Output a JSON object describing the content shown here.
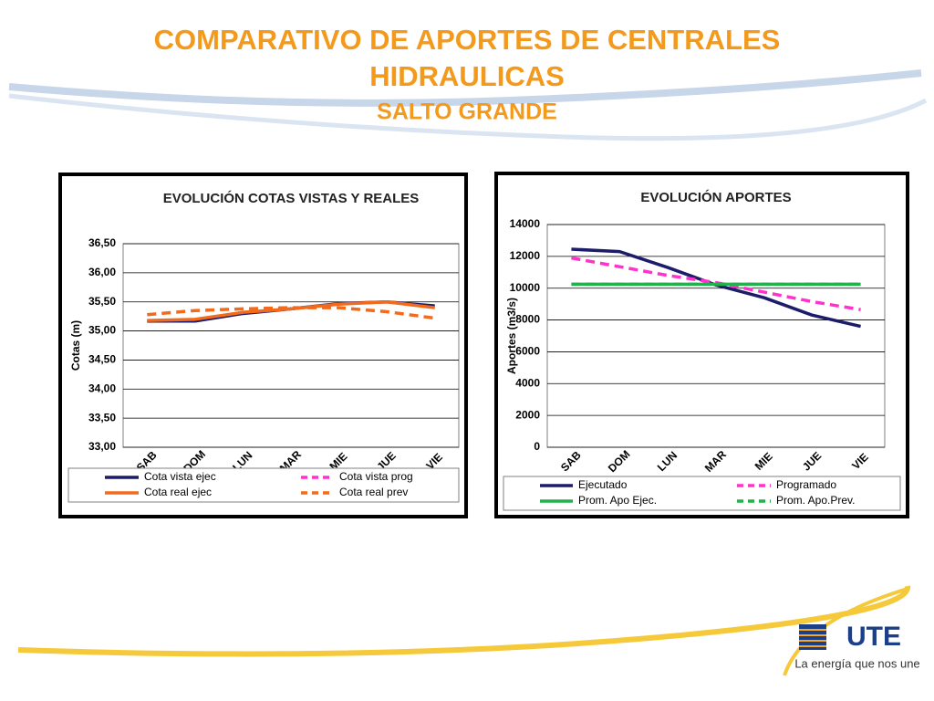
{
  "header": {
    "title_line1": "COMPARATIVO DE APORTES DE CENTRALES",
    "title_line2": "HIDRAULICAS",
    "subtitle": "SALTO GRANDE"
  },
  "logo": {
    "name": "UTE",
    "tagline": "La energía que nos une"
  },
  "chart_data": [
    {
      "type": "line",
      "title": "EVOLUCIÓN  COTAS VISTAS Y REALES",
      "y_label": "Cotas (m)",
      "categories": [
        "SAB",
        "DOM",
        "LUN",
        "MAR",
        "MIE",
        "JUE",
        "VIE"
      ],
      "ylim": [
        33,
        36.5
      ],
      "yticks": [
        {
          "value": 33,
          "label": "33,00"
        },
        {
          "value": 33.5,
          "label": "33,50"
        },
        {
          "value": 34,
          "label": "34,00"
        },
        {
          "value": 34.5,
          "label": "34,50"
        },
        {
          "value": 35,
          "label": "35,00"
        },
        {
          "value": 35.5,
          "label": "35,50"
        },
        {
          "value": 36,
          "label": "36,00"
        },
        {
          "value": 36.5,
          "label": "36,50"
        }
      ],
      "grid": true,
      "series": [
        {
          "name": "Cota vista ejec",
          "color": "#1c1c6b",
          "dashed": false,
          "values": [
            35.17,
            35.17,
            35.3,
            35.38,
            35.47,
            35.5,
            35.43
          ]
        },
        {
          "name": "Cota vista prog",
          "color": "#ff33cc",
          "dashed": true,
          "values": [
            null,
            null,
            null,
            null,
            null,
            null,
            null
          ]
        },
        {
          "name": "Cota real ejec",
          "color": "#f26b1d",
          "dashed": false,
          "values": [
            35.18,
            35.2,
            35.32,
            35.38,
            35.46,
            35.5,
            35.4
          ]
        },
        {
          "name": "Cota real prev",
          "color": "#f26b1d",
          "dashed": true,
          "values": [
            35.28,
            35.35,
            35.38,
            35.4,
            35.4,
            35.33,
            35.22
          ]
        }
      ]
    },
    {
      "type": "line",
      "title": "EVOLUCIÓN  APORTES",
      "y_label": "Aportes (m3/s)",
      "categories": [
        "SAB",
        "DOM",
        "LUN",
        "MAR",
        "MIE",
        "JUE",
        "VIE"
      ],
      "ylim": [
        0,
        14000
      ],
      "yticks": [
        0,
        2000,
        4000,
        6000,
        8000,
        10000,
        12000,
        14000
      ],
      "grid": true,
      "series": [
        {
          "name": "Ejecutado",
          "color": "#1c1c6b",
          "dashed": false,
          "values": [
            12450,
            12300,
            11300,
            10200,
            9400,
            8300,
            7600
          ]
        },
        {
          "name": "Programado",
          "color": "#ff33cc",
          "dashed": true,
          "values": [
            11900,
            11350,
            10800,
            10350,
            9750,
            9150,
            8650
          ]
        },
        {
          "name": "Prom. Apo Ejec.",
          "color": "#22b14c",
          "dashed": false,
          "values": [
            10250,
            10250,
            10250,
            10250,
            10250,
            10250,
            10250
          ]
        },
        {
          "name": "Prom. Apo.Prev.",
          "color": "#22b14c",
          "dashed": true,
          "values": [
            10250,
            10250,
            10250,
            10250,
            10250,
            10250,
            10250
          ]
        }
      ]
    }
  ]
}
